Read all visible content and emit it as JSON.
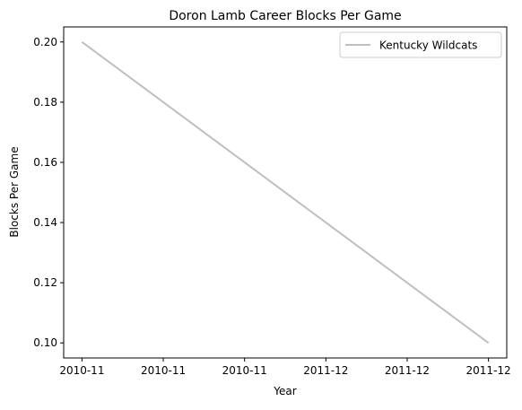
{
  "chart_data": {
    "type": "line",
    "title": "Doron Lamb Career Blocks Per Game",
    "xlabel": "Year",
    "ylabel": "Blocks Per Game",
    "x": [
      0,
      1
    ],
    "xlim": [
      0,
      1
    ],
    "x_tick_positions": [
      0,
      0.2,
      0.4,
      0.6,
      0.8,
      1.0
    ],
    "x_tick_labels": [
      "2010-11",
      "2010-11",
      "2010-11",
      "2011-12",
      "2011-12",
      "2011-12"
    ],
    "ylim": [
      0.095,
      0.205
    ],
    "y_ticks": [
      0.1,
      0.12,
      0.14,
      0.16,
      0.18,
      0.2
    ],
    "y_tick_labels": [
      "0.10",
      "0.12",
      "0.14",
      "0.16",
      "0.18",
      "0.20"
    ],
    "grid": false,
    "legend_position": "top-right",
    "series": [
      {
        "name": "Kentucky Wildcats",
        "values": [
          0.2,
          0.1
        ],
        "color": "#bfbfbf"
      }
    ]
  }
}
